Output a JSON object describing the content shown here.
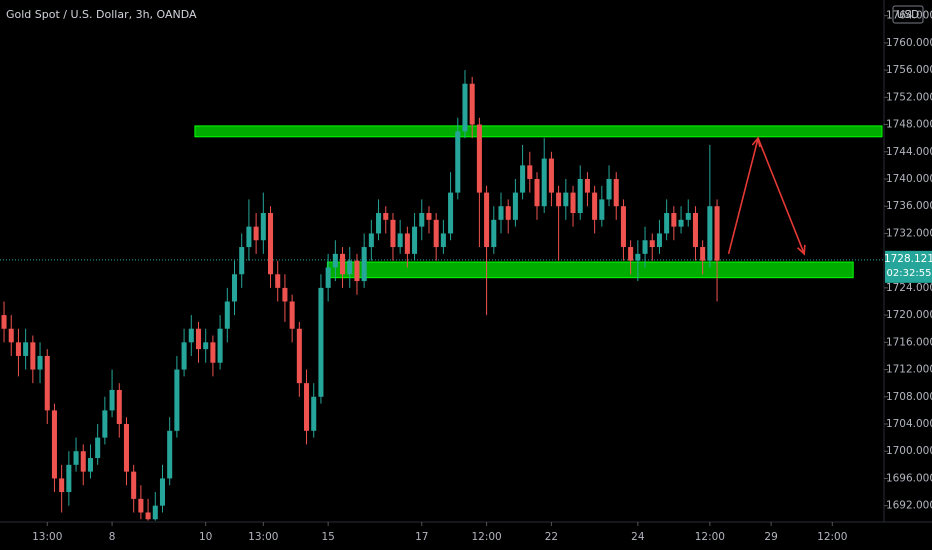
{
  "chart_data": {
    "type": "candlestick",
    "title": "Gold Spot / U.S. Dollar, 3h, OANDA",
    "currency": "USD",
    "up_color": "#26a69a",
    "down_color": "#ef5350",
    "open": [
      1720,
      1718,
      1716,
      1714,
      1716,
      1712,
      1714,
      1706,
      1696,
      1694,
      1698,
      1700,
      1697,
      1699,
      1702,
      1706,
      1709,
      1704,
      1697,
      1693,
      1691,
      1690,
      1692,
      1696,
      1703,
      1712,
      1716,
      1718,
      1715,
      1716,
      1713,
      1718,
      1722,
      1726,
      1730,
      1733,
      1731,
      1735,
      1726,
      1724,
      1722,
      1718,
      1710,
      1703,
      1708,
      1724,
      1727,
      1729,
      1726,
      1728,
      1725,
      1730,
      1732,
      1735,
      1734,
      1730,
      1732,
      1729,
      1733,
      1735,
      1734,
      1730,
      1732,
      1738,
      1747,
      1754,
      1748,
      1738,
      1730,
      1734,
      1736,
      1734,
      1738,
      1742,
      1740,
      1736,
      1743,
      1738,
      1736,
      1738,
      1735,
      1740,
      1738,
      1734,
      1737,
      1740,
      1736,
      1730,
      1728,
      1729,
      1731,
      1730,
      1732,
      1735,
      1733,
      1734,
      1735,
      1730,
      1728,
      1736
    ],
    "high": [
      1722,
      1720,
      1718,
      1718,
      1717,
      1716,
      1715,
      1707,
      1698,
      1700,
      1702,
      1701,
      1701,
      1704,
      1708,
      1712,
      1710,
      1705,
      1698,
      1695,
      1693,
      1694,
      1698,
      1705,
      1714,
      1718,
      1720,
      1719,
      1718,
      1717,
      1720,
      1724,
      1728,
      1732,
      1737,
      1735,
      1738,
      1736,
      1728,
      1726,
      1723,
      1719,
      1712,
      1710,
      1726,
      1729,
      1731,
      1730,
      1730,
      1729,
      1732,
      1734,
      1737,
      1736,
      1735,
      1734,
      1733,
      1735,
      1737,
      1736,
      1735,
      1734,
      1741,
      1749,
      1756,
      1755,
      1749,
      1739,
      1736,
      1738,
      1737,
      1740,
      1745,
      1744,
      1741,
      1746,
      1744,
      1739,
      1740,
      1739,
      1742,
      1741,
      1739,
      1739,
      1742,
      1741,
      1737,
      1731,
      1731,
      1733,
      1732,
      1734,
      1737,
      1736,
      1736,
      1737,
      1736,
      1731,
      1745,
      1737
    ],
    "low": [
      1716,
      1714,
      1711,
      1712,
      1710,
      1710,
      1704,
      1694,
      1691,
      1692,
      1697,
      1695,
      1696,
      1698,
      1701,
      1705,
      1702,
      1695,
      1691,
      1690,
      1689.8,
      1689.8,
      1691,
      1695,
      1702,
      1711,
      1714,
      1713,
      1713,
      1711,
      1712,
      1716,
      1720,
      1724,
      1728,
      1729,
      1729,
      1724,
      1722,
      1719,
      1716,
      1708,
      1701,
      1702,
      1707,
      1722,
      1725,
      1724,
      1724,
      1723,
      1724,
      1728,
      1731,
      1732,
      1728,
      1729,
      1727,
      1728,
      1731,
      1732,
      1728,
      1729,
      1731,
      1737,
      1746,
      1746,
      1730,
      1720,
      1729,
      1732,
      1732,
      1733,
      1737,
      1738,
      1734,
      1735,
      1736,
      1728,
      1734,
      1733,
      1734,
      1736,
      1732,
      1733,
      1736,
      1734,
      1728,
      1726,
      1725,
      1727,
      1728,
      1729,
      1731,
      1731,
      1732,
      1733,
      1728,
      1726,
      1727,
      1722
    ],
    "close": [
      1718,
      1716,
      1714,
      1716,
      1712,
      1714,
      1706,
      1696,
      1694,
      1698,
      1700,
      1697,
      1699,
      1702,
      1706,
      1709,
      1704,
      1697,
      1693,
      1691,
      1690,
      1692,
      1696,
      1703,
      1712,
      1716,
      1718,
      1715,
      1716,
      1713,
      1718,
      1722,
      1726,
      1730,
      1733,
      1731,
      1735,
      1726,
      1724,
      1722,
      1718,
      1710,
      1703,
      1708,
      1724,
      1727,
      1729,
      1726,
      1728,
      1725,
      1730,
      1732,
      1735,
      1734,
      1730,
      1732,
      1729,
      1733,
      1735,
      1734,
      1730,
      1732,
      1738,
      1747,
      1754,
      1748,
      1738,
      1730,
      1734,
      1736,
      1734,
      1738,
      1742,
      1740,
      1736,
      1743,
      1738,
      1736,
      1738,
      1735,
      1740,
      1738,
      1734,
      1737,
      1740,
      1736,
      1730,
      1728,
      1729,
      1731,
      1730,
      1732,
      1735,
      1733,
      1734,
      1735,
      1730,
      1728,
      1736,
      1728
    ],
    "xlim": [
      -0.56,
      121.9
    ],
    "xticks": [
      {
        "value": 6,
        "label": "13:00"
      },
      {
        "value": 15,
        "label": "8"
      },
      {
        "value": 28,
        "label": "10"
      },
      {
        "value": 36,
        "label": "13:00"
      },
      {
        "value": 45,
        "label": "15"
      },
      {
        "value": 58,
        "label": "17"
      },
      {
        "value": 67,
        "label": "12:00"
      },
      {
        "value": 76,
        "label": "22"
      },
      {
        "value": 88,
        "label": "24"
      },
      {
        "value": 98,
        "label": "12:00"
      },
      {
        "value": 106.5,
        "label": "29"
      },
      {
        "value": 115,
        "label": "12:00"
      }
    ],
    "ylim": [
      1689.6,
      1766.3
    ],
    "yticks": [
      {
        "value": 1692,
        "label": "1692.000"
      },
      {
        "value": 1696,
        "label": "1696.000"
      },
      {
        "value": 1700,
        "label": "1700.000"
      },
      {
        "value": 1704,
        "label": "1704.000"
      },
      {
        "value": 1708,
        "label": "1708.000"
      },
      {
        "value": 1712,
        "label": "1712.000"
      },
      {
        "value": 1716,
        "label": "1716.000"
      },
      {
        "value": 1720,
        "label": "1720.000"
      },
      {
        "value": 1724,
        "label": "1724.000"
      },
      {
        "value": 1732,
        "label": "1732.000"
      },
      {
        "value": 1736,
        "label": "1736.000"
      },
      {
        "value": 1740,
        "label": "1740.000"
      },
      {
        "value": 1744,
        "label": "1744.000"
      },
      {
        "value": 1748,
        "label": "1748.000"
      },
      {
        "value": 1752,
        "label": "1752.000"
      },
      {
        "value": 1756,
        "label": "1756.000"
      },
      {
        "value": 1760,
        "label": "1760.000"
      },
      {
        "value": 1764,
        "label": "1764.000"
      }
    ],
    "last_price": {
      "value": 1728.121,
      "label": "1728.121",
      "countdown": "02:32:55"
    },
    "zones": [
      {
        "from": 1746.2,
        "to": 1747.8,
        "start": 26.5,
        "end": 121.9
      },
      {
        "from": 1725.5,
        "to": 1727.8,
        "start": 44.9,
        "end": 117.9
      }
    ],
    "arrows": [
      {
        "x": [
          100.6,
          104.7,
          111.1
        ],
        "y": [
          1729,
          1746,
          1729
        ]
      }
    ]
  }
}
